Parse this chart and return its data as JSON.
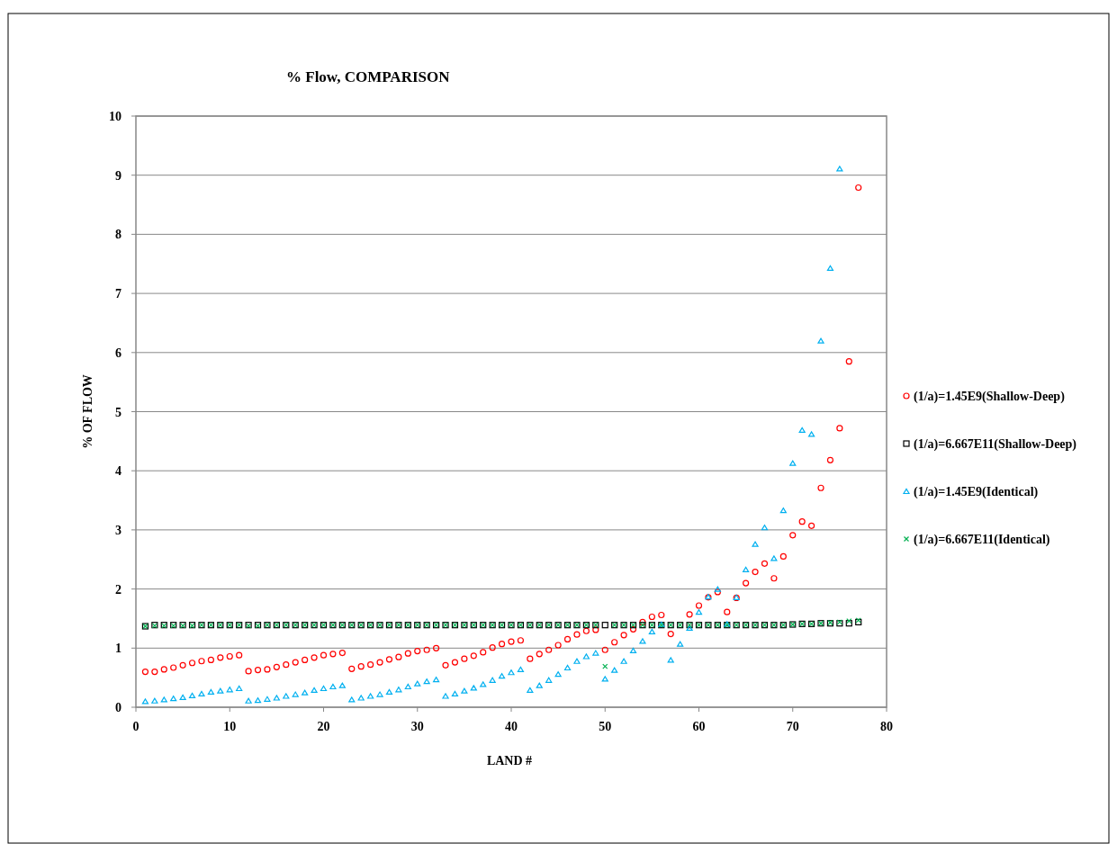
{
  "chart_data": {
    "type": "scatter",
    "title": "% Flow, COMPARISON",
    "xlabel": "LAND #",
    "ylabel": "% OF FLOW",
    "xlim": [
      0,
      80
    ],
    "xticks": [
      0,
      10,
      20,
      30,
      40,
      50,
      60,
      70,
      80
    ],
    "ylim": [
      0,
      10
    ],
    "yticks": [
      0,
      1,
      2,
      3,
      4,
      5,
      6,
      7,
      8,
      9,
      10
    ],
    "grid": "y",
    "legend": "right",
    "x": [
      1,
      2,
      3,
      4,
      5,
      6,
      7,
      8,
      9,
      10,
      11,
      12,
      13,
      14,
      15,
      16,
      17,
      18,
      19,
      20,
      21,
      22,
      23,
      24,
      25,
      26,
      27,
      28,
      29,
      30,
      31,
      32,
      33,
      34,
      35,
      36,
      37,
      38,
      39,
      40,
      41,
      42,
      43,
      44,
      45,
      46,
      47,
      48,
      49,
      50,
      51,
      52,
      53,
      54,
      55,
      56,
      57,
      58,
      59,
      60,
      61,
      62,
      63,
      64,
      65,
      66,
      67,
      68,
      69,
      70,
      71,
      72,
      73,
      74,
      75,
      76,
      77
    ],
    "series": [
      {
        "name": "(1/a)=1.45E9(Shallow-Deep)",
        "color": "#ff0000",
        "marker": "circle",
        "values": [
          0.6,
          0.6,
          0.64,
          0.67,
          0.71,
          0.75,
          0.78,
          0.8,
          0.84,
          0.86,
          0.88,
          0.61,
          0.63,
          0.64,
          0.68,
          0.72,
          0.76,
          0.8,
          0.84,
          0.88,
          0.9,
          0.92,
          0.65,
          0.69,
          0.72,
          0.76,
          0.81,
          0.85,
          0.91,
          0.95,
          0.97,
          1.0,
          0.71,
          0.76,
          0.82,
          0.87,
          0.93,
          1.01,
          1.07,
          1.11,
          1.13,
          0.82,
          0.9,
          0.97,
          1.05,
          1.15,
          1.23,
          1.29,
          1.31,
          0.97,
          1.1,
          1.22,
          1.32,
          1.44,
          1.53,
          1.56,
          1.24,
          null,
          1.57,
          1.72,
          1.86,
          1.95,
          1.61,
          1.85,
          2.1,
          2.29,
          2.43,
          2.18,
          2.55,
          2.91,
          3.14,
          3.07,
          3.71,
          4.18,
          4.72,
          5.85,
          8.79
        ]
      },
      {
        "name": "(1/a)=6.667E11(Shallow-Deep)",
        "color": "#000000",
        "marker": "square",
        "values": [
          1.37,
          1.39,
          1.39,
          1.39,
          1.39,
          1.39,
          1.39,
          1.39,
          1.39,
          1.39,
          1.39,
          1.39,
          1.39,
          1.39,
          1.39,
          1.39,
          1.39,
          1.39,
          1.39,
          1.39,
          1.39,
          1.39,
          1.39,
          1.39,
          1.39,
          1.39,
          1.39,
          1.39,
          1.39,
          1.39,
          1.39,
          1.39,
          1.39,
          1.39,
          1.39,
          1.39,
          1.39,
          1.39,
          1.39,
          1.39,
          1.39,
          1.39,
          1.39,
          1.39,
          1.39,
          1.39,
          1.39,
          1.39,
          1.39,
          1.39,
          1.39,
          1.39,
          1.39,
          1.39,
          1.39,
          1.39,
          1.39,
          1.39,
          1.39,
          1.39,
          1.39,
          1.39,
          1.39,
          1.39,
          1.39,
          1.39,
          1.39,
          1.39,
          1.39,
          1.4,
          1.41,
          1.41,
          1.42,
          1.42,
          1.42,
          1.42,
          1.44
        ]
      },
      {
        "name": "(1/a)=1.45E9(Identical)",
        "color": "#00b0f0",
        "marker": "triangle",
        "values": [
          0.1,
          0.11,
          0.13,
          0.15,
          0.17,
          0.2,
          0.23,
          0.26,
          0.28,
          0.3,
          0.32,
          0.11,
          0.12,
          0.14,
          0.16,
          0.19,
          0.22,
          0.25,
          0.29,
          0.32,
          0.35,
          0.37,
          0.13,
          0.16,
          0.19,
          0.22,
          0.26,
          0.3,
          0.35,
          0.4,
          0.44,
          0.47,
          0.19,
          0.23,
          0.28,
          0.33,
          0.39,
          0.46,
          0.53,
          0.59,
          0.64,
          0.29,
          0.37,
          0.46,
          0.56,
          0.67,
          0.78,
          0.86,
          0.92,
          0.48,
          0.63,
          0.78,
          0.96,
          1.12,
          1.28,
          1.4,
          0.8,
          1.07,
          1.34,
          1.61,
          1.87,
          2.0,
          1.41,
          1.86,
          2.33,
          2.76,
          3.04,
          2.52,
          3.33,
          4.13,
          4.69,
          4.62,
          6.2,
          7.43,
          9.11,
          null,
          null
        ]
      },
      {
        "name": "(1/a)=6.667E11(Identical)",
        "color": "#00b050",
        "marker": "cross",
        "values": [
          1.37,
          1.38,
          1.38,
          1.38,
          1.38,
          1.38,
          1.39,
          1.39,
          1.39,
          1.39,
          1.39,
          1.38,
          1.38,
          1.39,
          1.39,
          1.39,
          1.39,
          1.39,
          1.39,
          1.39,
          1.39,
          1.39,
          1.39,
          1.39,
          1.39,
          1.39,
          1.39,
          1.39,
          1.39,
          1.39,
          1.39,
          1.39,
          1.39,
          1.39,
          1.39,
          1.39,
          1.39,
          1.39,
          1.39,
          1.39,
          1.39,
          1.39,
          1.39,
          1.39,
          1.39,
          1.39,
          1.39,
          1.39,
          1.39,
          0.69,
          1.39,
          1.39,
          1.39,
          1.39,
          1.39,
          1.39,
          1.39,
          1.39,
          1.39,
          1.39,
          1.39,
          1.39,
          1.39,
          1.39,
          1.39,
          1.39,
          1.39,
          1.39,
          1.39,
          1.4,
          1.41,
          1.41,
          1.42,
          1.43,
          1.44,
          1.46,
          1.47
        ]
      }
    ]
  }
}
